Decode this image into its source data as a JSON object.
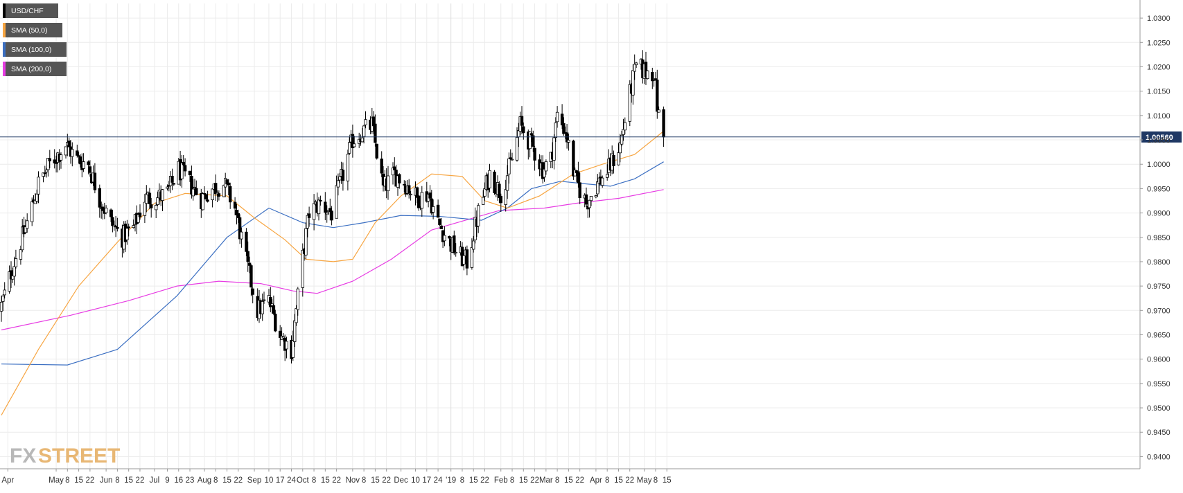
{
  "legend": [
    {
      "label": "USD/CHF",
      "color": "#000000"
    },
    {
      "label": "SMA (50,0)",
      "color": "#f7a541"
    },
    {
      "label": "SMA (100,0)",
      "color": "#3b6fc2"
    },
    {
      "label": "SMA (200,0)",
      "color": "#e73ce3"
    }
  ],
  "current_price_label": "1.00560",
  "logo": {
    "part1": "FX",
    "part2": "STREET"
  },
  "chart_data": {
    "type": "candlestick",
    "title": "",
    "xlabel": "",
    "ylabel": "",
    "symbol": "USD/CHF",
    "ylim": [
      0.9375,
      1.033
    ],
    "y_ticks": [
      "1.0300",
      "1.0250",
      "1.0200",
      "1.0150",
      "1.0100",
      "1.0050",
      "1.0000",
      "0.9950",
      "0.9900",
      "0.9850",
      "0.9800",
      "0.9750",
      "0.9700",
      "0.9650",
      "0.9600",
      "0.9550",
      "0.9500",
      "0.9450",
      "0.9400"
    ],
    "x_ticks": [
      {
        "label": "Apr",
        "date": "2018-04-01"
      },
      {
        "label": "May",
        "date": "2018-05-01"
      },
      {
        "label": "8",
        "date": "2018-05-08"
      },
      {
        "label": "15",
        "date": "2018-05-15"
      },
      {
        "label": "22",
        "date": "2018-05-22"
      },
      {
        "label": "Jun",
        "date": "2018-06-01"
      },
      {
        "label": "8",
        "date": "2018-06-08"
      },
      {
        "label": "15",
        "date": "2018-06-15"
      },
      {
        "label": "22",
        "date": "2018-06-22"
      },
      {
        "label": "Jul",
        "date": "2018-07-01"
      },
      {
        "label": "9",
        "date": "2018-07-09"
      },
      {
        "label": "16",
        "date": "2018-07-16"
      },
      {
        "label": "23",
        "date": "2018-07-23"
      },
      {
        "label": "Aug",
        "date": "2018-08-01"
      },
      {
        "label": "8",
        "date": "2018-08-08"
      },
      {
        "label": "15",
        "date": "2018-08-15"
      },
      {
        "label": "22",
        "date": "2018-08-22"
      },
      {
        "label": "Sep",
        "date": "2018-09-01"
      },
      {
        "label": "10",
        "date": "2018-09-10"
      },
      {
        "label": "17",
        "date": "2018-09-17"
      },
      {
        "label": "24",
        "date": "2018-09-24"
      },
      {
        "label": "Oct",
        "date": "2018-10-01"
      },
      {
        "label": "8",
        "date": "2018-10-08"
      },
      {
        "label": "15",
        "date": "2018-10-15"
      },
      {
        "label": "22",
        "date": "2018-10-22"
      },
      {
        "label": "Nov",
        "date": "2018-11-01"
      },
      {
        "label": "8",
        "date": "2018-11-08"
      },
      {
        "label": "15",
        "date": "2018-11-15"
      },
      {
        "label": "22",
        "date": "2018-11-22"
      },
      {
        "label": "Dec",
        "date": "2018-12-01"
      },
      {
        "label": "10",
        "date": "2018-12-10"
      },
      {
        "label": "17",
        "date": "2018-12-17"
      },
      {
        "label": "24",
        "date": "2018-12-24"
      },
      {
        "label": "'19",
        "date": "2019-01-01"
      },
      {
        "label": "8",
        "date": "2019-01-08"
      },
      {
        "label": "15",
        "date": "2019-01-15"
      },
      {
        "label": "22",
        "date": "2019-01-22"
      },
      {
        "label": "Feb",
        "date": "2019-02-01"
      },
      {
        "label": "8",
        "date": "2019-02-08"
      },
      {
        "label": "15",
        "date": "2019-02-15"
      },
      {
        "label": "22",
        "date": "2019-02-22"
      },
      {
        "label": "Mar",
        "date": "2019-03-01"
      },
      {
        "label": "8",
        "date": "2019-03-08"
      },
      {
        "label": "15",
        "date": "2019-03-15"
      },
      {
        "label": "22",
        "date": "2019-03-22"
      },
      {
        "label": "Apr",
        "date": "2019-04-01"
      },
      {
        "label": "8",
        "date": "2019-04-08"
      },
      {
        "label": "15",
        "date": "2019-04-15"
      },
      {
        "label": "22",
        "date": "2019-04-22"
      },
      {
        "label": "May",
        "date": "2019-05-01"
      },
      {
        "label": "8",
        "date": "2019-05-08"
      },
      {
        "label": "15",
        "date": "2019-05-15"
      }
    ],
    "current_price": 1.0056,
    "grid": true,
    "legend_position": "top-left",
    "close_anchors": [
      [
        "2018-03-28",
        0.971
      ],
      [
        "2018-04-05",
        0.98
      ],
      [
        "2018-04-13",
        0.988
      ],
      [
        "2018-04-20",
        0.996
      ],
      [
        "2018-04-27",
        1.0
      ],
      [
        "2018-05-07",
        1.004
      ],
      [
        "2018-05-14",
        1.001
      ],
      [
        "2018-05-21",
        1.0
      ],
      [
        "2018-05-28",
        0.993
      ],
      [
        "2018-06-04",
        0.988
      ],
      [
        "2018-06-11",
        0.985
      ],
      [
        "2018-06-18",
        0.987
      ],
      [
        "2018-06-25",
        0.993
      ],
      [
        "2018-07-02",
        0.993
      ],
      [
        "2018-07-09",
        0.994
      ],
      [
        "2018-07-16",
        0.999
      ],
      [
        "2018-07-23",
        0.996
      ],
      [
        "2018-07-30",
        0.993
      ],
      [
        "2018-08-06",
        0.995
      ],
      [
        "2018-08-13",
        0.996
      ],
      [
        "2018-08-20",
        0.991
      ],
      [
        "2018-08-27",
        0.98
      ],
      [
        "2018-09-03",
        0.97
      ],
      [
        "2018-09-10",
        0.972
      ],
      [
        "2018-09-17",
        0.965
      ],
      [
        "2018-09-24",
        0.962
      ],
      [
        "2018-10-01",
        0.981
      ],
      [
        "2018-10-05",
        0.99
      ],
      [
        "2018-10-12",
        0.992
      ],
      [
        "2018-10-19",
        0.99
      ],
      [
        "2018-10-26",
        0.998
      ],
      [
        "2018-11-01",
        1.005
      ],
      [
        "2018-11-08",
        1.007
      ],
      [
        "2018-11-13",
        1.008
      ],
      [
        "2018-11-20",
        0.995
      ],
      [
        "2018-11-27",
        0.998
      ],
      [
        "2018-12-04",
        0.996
      ],
      [
        "2018-12-11",
        0.993
      ],
      [
        "2018-12-18",
        0.994
      ],
      [
        "2018-12-24",
        0.988
      ],
      [
        "2018-12-31",
        0.984
      ],
      [
        "2019-01-07",
        0.981
      ],
      [
        "2019-01-11",
        0.98
      ],
      [
        "2019-01-18",
        0.99
      ],
      [
        "2019-01-25",
        0.998
      ],
      [
        "2019-02-01",
        0.994
      ],
      [
        "2019-02-08",
        1.001
      ],
      [
        "2019-02-13",
        1.008
      ],
      [
        "2019-02-20",
        1.004
      ],
      [
        "2019-02-27",
        0.999
      ],
      [
        "2019-03-04",
        1.001
      ],
      [
        "2019-03-08",
        1.01
      ],
      [
        "2019-03-13",
        1.007
      ],
      [
        "2019-03-19",
        0.997
      ],
      [
        "2019-03-26",
        0.992
      ],
      [
        "2019-04-02",
        0.996
      ],
      [
        "2019-04-09",
        0.999
      ],
      [
        "2019-04-16",
        1.004
      ],
      [
        "2019-04-23",
        1.016
      ],
      [
        "2019-04-26",
        1.02
      ],
      [
        "2019-05-02",
        1.019
      ],
      [
        "2019-05-07",
        1.019
      ],
      [
        "2019-05-09",
        1.012
      ],
      [
        "2019-05-10",
        1.01
      ],
      [
        "2019-05-13",
        1.0056
      ]
    ],
    "sma50": [
      [
        "2018-03-28",
        0.9485
      ],
      [
        "2018-04-20",
        0.962
      ],
      [
        "2018-05-15",
        0.975
      ],
      [
        "2018-06-08",
        0.984
      ],
      [
        "2018-07-01",
        0.992
      ],
      [
        "2018-07-20",
        0.994
      ],
      [
        "2018-08-15",
        0.9935
      ],
      [
        "2018-09-01",
        0.989
      ],
      [
        "2018-09-20",
        0.9845
      ],
      [
        "2018-10-03",
        0.9805
      ],
      [
        "2018-10-20",
        0.98
      ],
      [
        "2018-11-01",
        0.9805
      ],
      [
        "2018-11-15",
        0.988
      ],
      [
        "2018-12-01",
        0.9935
      ],
      [
        "2018-12-20",
        0.998
      ],
      [
        "2019-01-08",
        0.9975
      ],
      [
        "2019-01-22",
        0.9925
      ],
      [
        "2019-02-05",
        0.991
      ],
      [
        "2019-02-25",
        0.9935
      ],
      [
        "2019-03-18",
        0.998
      ],
      [
        "2019-04-05",
        1.0
      ],
      [
        "2019-04-25",
        1.002
      ],
      [
        "2019-05-13",
        1.0068
      ]
    ],
    "sma100": [
      [
        "2018-03-28",
        0.959
      ],
      [
        "2018-05-08",
        0.9588
      ],
      [
        "2018-06-08",
        0.962
      ],
      [
        "2018-07-15",
        0.973
      ],
      [
        "2018-08-15",
        0.985
      ],
      [
        "2018-09-10",
        0.991
      ],
      [
        "2018-10-01",
        0.988
      ],
      [
        "2018-10-20",
        0.987
      ],
      [
        "2018-11-08",
        0.988
      ],
      [
        "2018-12-01",
        0.9895
      ],
      [
        "2018-12-25",
        0.9893
      ],
      [
        "2019-01-20",
        0.9885
      ],
      [
        "2019-02-05",
        0.991
      ],
      [
        "2019-02-20",
        0.995
      ],
      [
        "2019-03-10",
        0.9965
      ],
      [
        "2019-03-25",
        0.996
      ],
      [
        "2019-04-10",
        0.9955
      ],
      [
        "2019-04-25",
        0.997
      ],
      [
        "2019-05-13",
        1.0005
      ]
    ],
    "sma200": [
      [
        "2018-03-28",
        0.966
      ],
      [
        "2018-05-10",
        0.969
      ],
      [
        "2018-06-15",
        0.972
      ],
      [
        "2018-07-15",
        0.975
      ],
      [
        "2018-08-10",
        0.976
      ],
      [
        "2018-09-05",
        0.9755
      ],
      [
        "2018-09-25",
        0.974
      ],
      [
        "2018-10-10",
        0.9735
      ],
      [
        "2018-11-01",
        0.976
      ],
      [
        "2018-11-25",
        0.9805
      ],
      [
        "2018-12-20",
        0.9865
      ],
      [
        "2019-01-10",
        0.9885
      ],
      [
        "2019-01-31",
        0.9905
      ],
      [
        "2019-02-28",
        0.991
      ],
      [
        "2019-03-20",
        0.992
      ],
      [
        "2019-04-15",
        0.993
      ],
      [
        "2019-05-13",
        0.9948
      ]
    ]
  }
}
